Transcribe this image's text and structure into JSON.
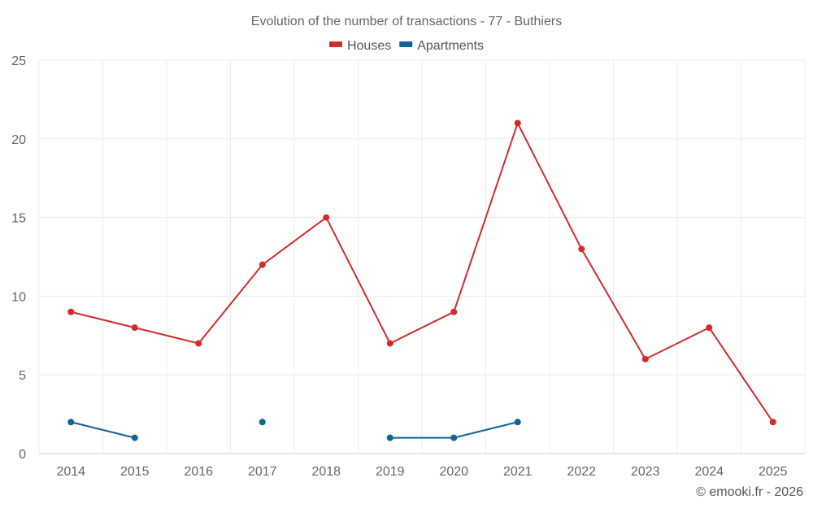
{
  "chart_data": {
    "type": "line",
    "title": "Evolution of the number of transactions - 77 - Buthiers",
    "categories": [
      "2014",
      "2015",
      "2016",
      "2017",
      "2018",
      "2019",
      "2020",
      "2021",
      "2022",
      "2023",
      "2024",
      "2025"
    ],
    "series": [
      {
        "name": "Houses",
        "color": "#d32a2a",
        "values": [
          9,
          8,
          7,
          12,
          15,
          7,
          9,
          21,
          13,
          6,
          8,
          2
        ]
      },
      {
        "name": "Apartments",
        "color": "#0f6496",
        "values": [
          2,
          1,
          null,
          2,
          null,
          1,
          1,
          2,
          null,
          null,
          null,
          null
        ]
      }
    ],
    "ylim": [
      0,
      25
    ],
    "yticks": [
      0,
      5,
      10,
      15,
      20,
      25
    ],
    "legend_position": "top-center",
    "grid": true
  },
  "credit": "© emooki.fr - 2026"
}
